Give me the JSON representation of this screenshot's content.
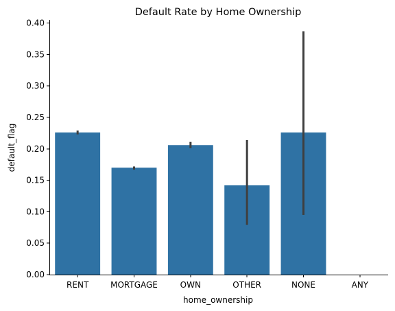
{
  "chart_data": {
    "type": "bar",
    "title": "Default Rate by Home Ownership",
    "xlabel": "home_ownership",
    "ylabel": "default_flag",
    "categories": [
      "RENT",
      "MORTGAGE",
      "OWN",
      "OTHER",
      "NONE",
      "ANY"
    ],
    "values": [
      0.226,
      0.17,
      0.206,
      0.142,
      0.226,
      null
    ],
    "error_bars": [
      {
        "low": 0.223,
        "high": 0.229
      },
      {
        "low": 0.167,
        "high": 0.172
      },
      {
        "low": 0.201,
        "high": 0.211
      },
      {
        "low": 0.079,
        "high": 0.214
      },
      {
        "low": 0.095,
        "high": 0.387
      },
      null
    ],
    "ylim": [
      0,
      0.405
    ],
    "yticks": [
      0.0,
      0.05,
      0.1,
      0.15,
      0.2,
      0.25,
      0.3,
      0.35,
      0.4
    ],
    "ytick_labels": [
      "0.00",
      "0.05",
      "0.10",
      "0.15",
      "0.20",
      "0.25",
      "0.30",
      "0.35",
      "0.40"
    ],
    "bar_color": "#2f72a4",
    "error_color": "#3f3f3f",
    "grid": false,
    "legend": "none"
  }
}
